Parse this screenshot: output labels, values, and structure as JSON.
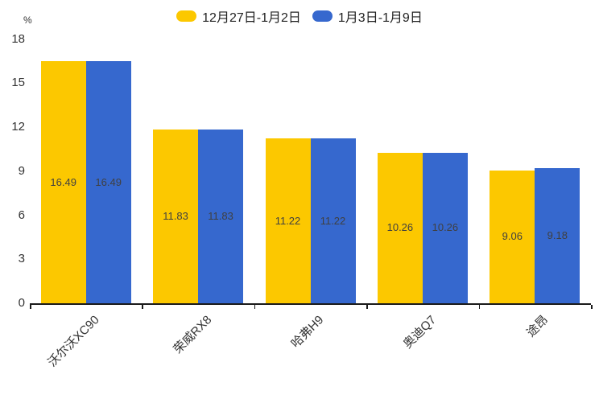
{
  "chart_data": {
    "type": "bar",
    "unit": "%",
    "categories": [
      "沃尔沃XC90",
      "荣威RX8",
      "哈弗H9",
      "奥迪Q7",
      "途昂"
    ],
    "series": [
      {
        "name": "12月27日-1月2日",
        "color": "#FCC800",
        "values": [
          16.49,
          11.83,
          11.22,
          10.26,
          9.06
        ]
      },
      {
        "name": "1月3日-1月9日",
        "color": "#3668CE",
        "values": [
          16.49,
          11.83,
          11.22,
          10.26,
          9.18
        ]
      }
    ],
    "yticks": [
      0,
      3,
      6,
      9,
      12,
      15,
      18
    ],
    "ylim": [
      0,
      18
    ],
    "grid": false,
    "legend_position": "top",
    "value_labels": true
  },
  "colors": {
    "background": "#FFFFFF",
    "axis": "#1A1A1A",
    "tick_label": "#333333",
    "value_label": "#404040",
    "legend_label": "#222222"
  }
}
